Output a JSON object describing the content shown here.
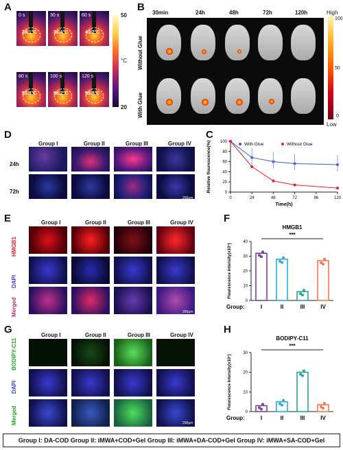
{
  "panel_letters": {
    "A": "A",
    "B": "B",
    "C": "C",
    "D": "D",
    "E": "E",
    "F": "F",
    "G": "G",
    "H": "H"
  },
  "panelA": {
    "times": [
      "0 s",
      "30 s",
      "60 s",
      "80 s",
      "100 s",
      "120 s"
    ],
    "temps": [
      "28.1°C",
      "36.4°C",
      "43.2°C",
      "53.8°C",
      "56.2°C",
      "59.8°C"
    ],
    "scale_max": "50",
    "scale_min": "20",
    "unit": "°C"
  },
  "panelB": {
    "times": [
      "30min",
      "24h",
      "48h",
      "72h",
      "120h"
    ],
    "rows": [
      "Without Glue",
      "With Glue"
    ],
    "scale": {
      "high": "High",
      "low": "Low",
      "t100": "100",
      "t50": "50",
      "t0": "0"
    }
  },
  "panelC": {
    "ylabel": "Relative flourescence(%)",
    "xlabel": "Time(h)",
    "legend_with": "With Glue",
    "legend_without": "Without Glue",
    "xticks": [
      "0",
      "24",
      "48",
      "72",
      "96",
      "120"
    ],
    "yticks": [
      "0",
      "20",
      "40",
      "60",
      "80",
      "100"
    ]
  },
  "panelD": {
    "groups": [
      "Group I",
      "Group II",
      "Group III",
      "Group IV"
    ],
    "rows": [
      "24h",
      "72h"
    ],
    "scalebar": "200μm"
  },
  "panelE": {
    "groups": [
      "Group I",
      "Group II",
      "Group III",
      "Group IV"
    ],
    "rows": [
      "HMGB1",
      "DAPI",
      "Merged"
    ],
    "scalebar": "200μm"
  },
  "panelF": {
    "title": "HMGB1",
    "ylabel": "Flourescence intensity(x10⁷)",
    "sig": "***",
    "group_label": "Group:",
    "cats": [
      "I",
      "II",
      "III",
      "IV"
    ],
    "yticks": [
      "0",
      "10",
      "20",
      "30",
      "40"
    ]
  },
  "panelG": {
    "groups": [
      "Group I",
      "Group II",
      "Group III",
      "Group IV"
    ],
    "rows": [
      "BODIPY-C11",
      "DAPI",
      "Merged"
    ],
    "scalebar": "200μm"
  },
  "panelH": {
    "title": "BODIPY-C11",
    "ylabel": "Flourescence intensity(x10⁷)",
    "sig": "***",
    "group_label": "Group:",
    "cats": [
      "I",
      "II",
      "III",
      "IV"
    ],
    "yticks": [
      "0",
      "10",
      "20",
      "30"
    ]
  },
  "footer": "Group I: DA-COD  Group II: iMWA+COD+Gel  Group III: iMWA+DA-COD+Gel  Group IV: iMWA+SA-COD+Gel",
  "chart_data": [
    {
      "type": "line",
      "title": "",
      "xlabel": "Time(h)",
      "ylabel": "Relative flourescence(%)",
      "x": [
        0,
        24,
        48,
        72,
        120
      ],
      "xlim": [
        0,
        120
      ],
      "ylim": [
        0,
        100
      ],
      "series": [
        {
          "name": "With Glue",
          "values": [
            100,
            68,
            60,
            56,
            54
          ]
        },
        {
          "name": "Without Glue",
          "values": [
            100,
            50,
            22,
            14,
            8
          ]
        }
      ]
    },
    {
      "type": "bar",
      "title": "HMGB1",
      "ylabel": "Flourescence intensity(x10⁷)",
      "categories": [
        "I",
        "II",
        "III",
        "IV"
      ],
      "values": [
        32,
        28,
        6,
        27
      ],
      "ylim": [
        0,
        40
      ],
      "colors": [
        "#7b3fa0",
        "#29a9e0",
        "#2aa198",
        "#f07850"
      ]
    },
    {
      "type": "bar",
      "title": "BODIPY-C11",
      "ylabel": "Flourescence intensity(x10⁷)",
      "categories": [
        "I",
        "II",
        "III",
        "IV"
      ],
      "values": [
        3,
        5,
        20,
        3.5
      ],
      "ylim": [
        0,
        30
      ],
      "colors": [
        "#7b3fa0",
        "#29a9e0",
        "#2aa198",
        "#f07850"
      ]
    }
  ]
}
